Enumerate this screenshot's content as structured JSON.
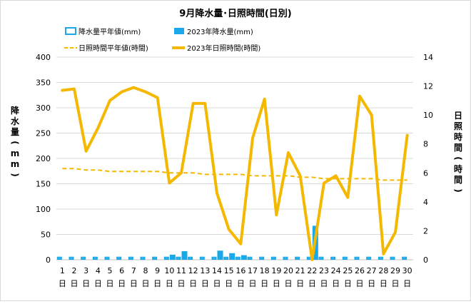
{
  "chart_data": {
    "type": "bar",
    "title": "9月降水量･日照時間(日別)",
    "categories": [
      "1",
      "2",
      "3",
      "4",
      "5",
      "6",
      "7",
      "8",
      "9",
      "10",
      "11",
      "12",
      "13",
      "14",
      "15",
      "16",
      "17",
      "18",
      "19",
      "20",
      "21",
      "22",
      "23",
      "24",
      "25",
      "26",
      "27",
      "28",
      "29",
      "30"
    ],
    "unit_label": "日",
    "y_left": {
      "label": "降水量(mm)",
      "lim": [
        0,
        400
      ],
      "ticks": [
        0,
        50,
        100,
        150,
        200,
        250,
        300,
        350,
        400
      ]
    },
    "y_right": {
      "label": "日照時間(時間)",
      "lim": [
        0,
        14
      ],
      "ticks": [
        0,
        2,
        4,
        6,
        8,
        10,
        12,
        14
      ]
    },
    "grid": "horizontal",
    "legend_position": "top",
    "series": [
      {
        "name": "降水量平年値(mm)",
        "type": "bar",
        "axis": "left",
        "style": "outline",
        "color": "#1aa8e8",
        "values": [
          6,
          6,
          6,
          6,
          6,
          6,
          6,
          6,
          6,
          6,
          6,
          6,
          6,
          6,
          6,
          6,
          6,
          6,
          6,
          6,
          6,
          6,
          6,
          6,
          6,
          6,
          6,
          6,
          6,
          6
        ]
      },
      {
        "name": "2023年降水量(mm)",
        "type": "bar",
        "axis": "left",
        "style": "filled",
        "color": "#1aa8e8",
        "values": [
          0,
          0,
          0,
          0,
          0,
          0,
          0,
          0,
          0,
          10,
          17,
          0,
          0,
          18,
          13,
          9,
          0,
          0,
          0,
          0,
          0,
          67,
          0,
          0,
          0,
          0,
          0,
          0,
          0,
          0
        ]
      },
      {
        "name": "日照時間平年値(時間)",
        "type": "line",
        "axis": "right",
        "style": "dashed",
        "color": "#f5b800",
        "values": [
          6.3,
          6.3,
          6.2,
          6.2,
          6.1,
          6.1,
          6.1,
          6.1,
          6.1,
          6.0,
          6.0,
          6.0,
          5.9,
          5.9,
          5.9,
          5.9,
          5.8,
          5.8,
          5.8,
          5.8,
          5.7,
          5.7,
          5.6,
          5.6,
          5.6,
          5.6,
          5.6,
          5.5,
          5.5,
          5.5
        ]
      },
      {
        "name": "2023年日照時間(時間)",
        "type": "line",
        "axis": "right",
        "style": "solid",
        "color": "#f5b800",
        "values": [
          11.7,
          11.8,
          7.5,
          9.1,
          11.0,
          11.6,
          11.9,
          11.6,
          11.2,
          5.3,
          6.0,
          10.8,
          10.8,
          4.6,
          2.1,
          1.1,
          8.4,
          11.1,
          3.1,
          7.4,
          5.8,
          0.0,
          5.3,
          5.8,
          4.3,
          11.3,
          10.0,
          0.4,
          1.9,
          8.6
        ]
      }
    ]
  }
}
